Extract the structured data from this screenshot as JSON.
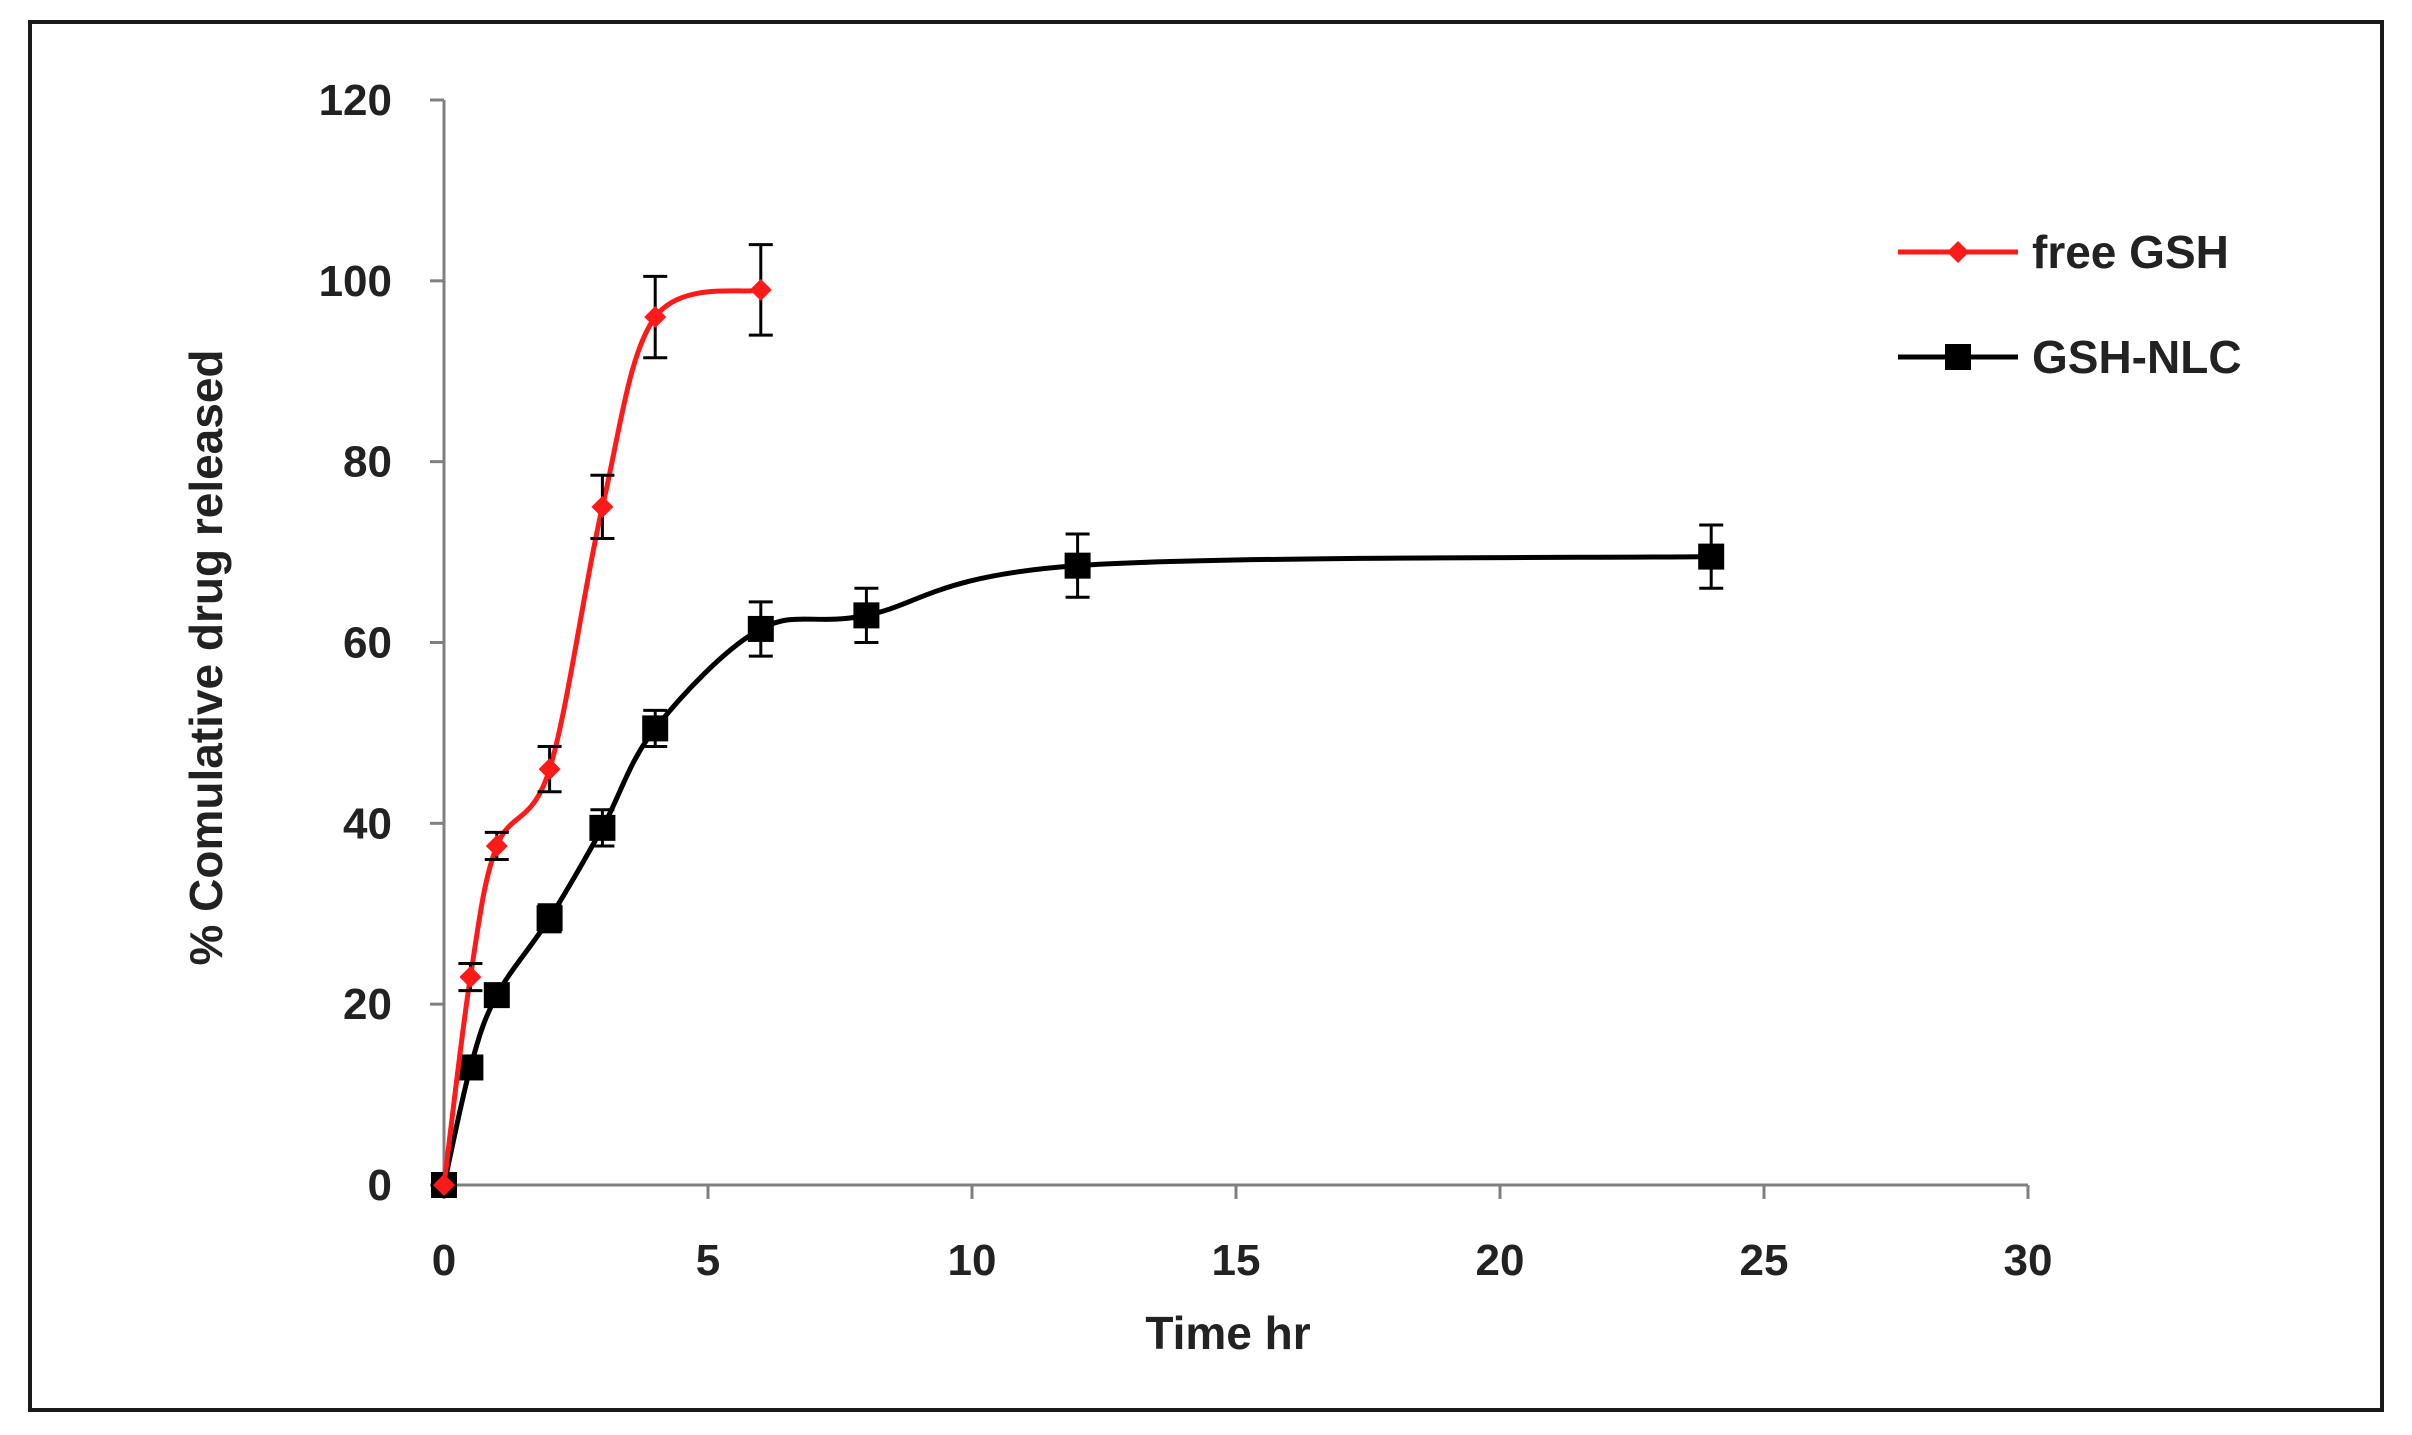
{
  "chart_data": {
    "type": "line",
    "title": "",
    "xlabel": "Time hr",
    "ylabel": "% Comulative drug released",
    "xlim": [
      0,
      30
    ],
    "ylim": [
      0,
      120
    ],
    "xticks": [
      0,
      5,
      10,
      15,
      20,
      25,
      30
    ],
    "yticks": [
      0,
      20,
      40,
      60,
      80,
      100,
      120
    ],
    "grid": false,
    "legend_position": "top-right",
    "series": [
      {
        "name": "free GSH",
        "color": "#ff1a1a",
        "marker": "diamond",
        "x": [
          0,
          0.5,
          1,
          2,
          3,
          4,
          6
        ],
        "y": [
          0,
          23,
          37.5,
          46,
          75,
          96,
          99
        ],
        "err": [
          0,
          1.5,
          1.5,
          2.5,
          3.5,
          4.5,
          5
        ]
      },
      {
        "name": "GSH-NLC",
        "color": "#000000",
        "marker": "square",
        "x": [
          0,
          0.5,
          1,
          2,
          3,
          4,
          6,
          8,
          12,
          24
        ],
        "y": [
          0,
          13,
          21,
          29.5,
          39.5,
          50.5,
          61.5,
          63,
          68.5,
          69.5
        ],
        "err": [
          0,
          1,
          1,
          1.5,
          2,
          2,
          3,
          3,
          3.5,
          3.5
        ]
      }
    ]
  }
}
